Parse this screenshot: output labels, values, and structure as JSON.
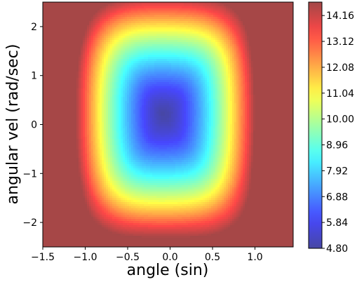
{
  "chart_data": {
    "type": "heatmap",
    "title": "",
    "xlabel": "angle (sin)",
    "ylabel": "angular vel (rad/sec)",
    "xlim": [
      -1.5,
      1.45
    ],
    "ylim": [
      -2.5,
      2.5
    ],
    "x_ticks": [
      {
        "value": -1.5,
        "label": "−1.5"
      },
      {
        "value": -1.0,
        "label": "−1.0"
      },
      {
        "value": -0.5,
        "label": "−0.5"
      },
      {
        "value": 0.0,
        "label": "0.0"
      },
      {
        "value": 0.5,
        "label": "0.5"
      },
      {
        "value": 1.0,
        "label": "1.0"
      }
    ],
    "y_ticks": [
      {
        "value": 2,
        "label": "2"
      },
      {
        "value": 1,
        "label": "1"
      },
      {
        "value": 0,
        "label": "0"
      },
      {
        "value": -1,
        "label": "−1"
      },
      {
        "value": -2,
        "label": "−2"
      }
    ],
    "colorbar": {
      "colormap": "jet",
      "range": [
        4.8,
        14.7
      ],
      "ticks": [
        "4.80",
        "5.84",
        "6.88",
        "7.92",
        "8.96",
        "10.00",
        "11.04",
        "12.08",
        "13.12",
        "14.16"
      ]
    },
    "field": {
      "minimum": {
        "x": -0.1,
        "y": 0.25,
        "value": 4.8
      },
      "valley_edges_x": [
        -0.7,
        0.6
      ],
      "valley_edges_y": [
        -1.4,
        1.7
      ],
      "max_value": 14.7
    }
  }
}
